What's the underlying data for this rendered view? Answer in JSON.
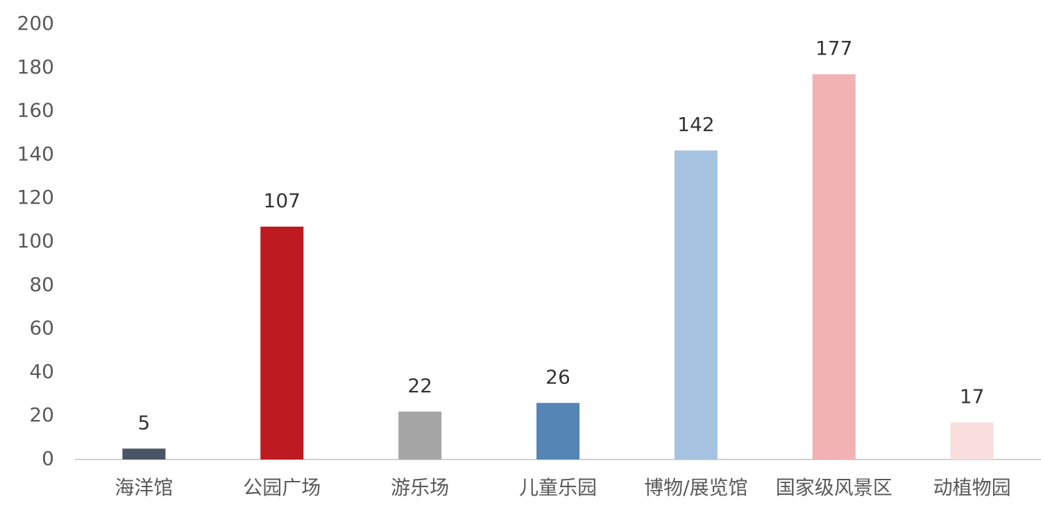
{
  "chart_data": {
    "type": "bar",
    "categories": [
      "海洋馆",
      "公园广场",
      "游乐场",
      "儿童乐园",
      "博物/展览馆",
      "国家级风景区",
      "动植物园"
    ],
    "values": [
      5,
      107,
      22,
      26,
      142,
      177,
      17
    ],
    "colors": [
      "#4a5466",
      "#be1a21",
      "#a5a5a5",
      "#5585b5",
      "#a6c4e2",
      "#f2b1b2",
      "#f8dedd"
    ],
    "ylim": [
      0,
      200
    ],
    "yticks": [
      0,
      20,
      40,
      60,
      80,
      100,
      120,
      140,
      160,
      180,
      200
    ],
    "grid": false,
    "data_labels": true
  }
}
